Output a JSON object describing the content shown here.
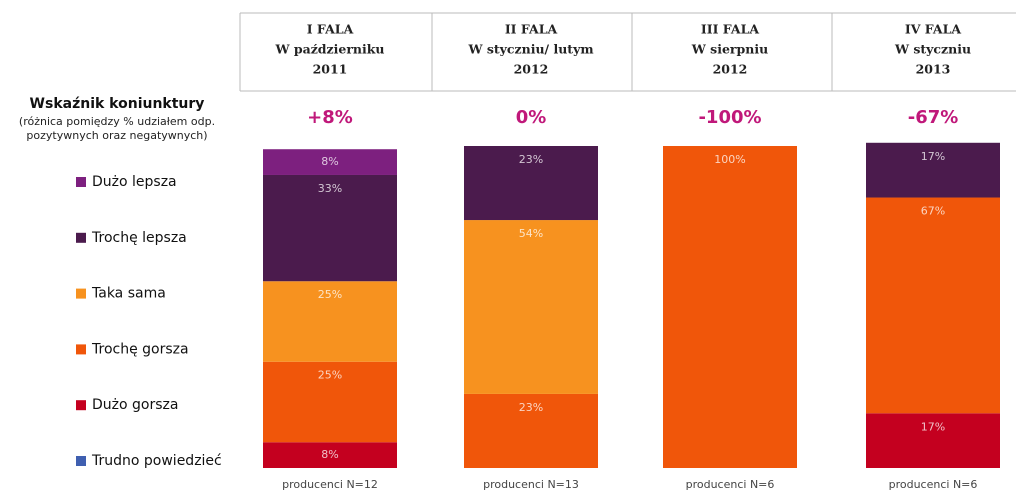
{
  "chart_data": {
    "type": "stacked_bar",
    "title": "Wskaźnik koniunktury",
    "subtitle": [
      "(różnica pomiędzy % udziałem odp.",
      "pozytywnych oraz negatywnych)"
    ],
    "headers": [
      [
        "I FALA",
        "W październiku",
        "2011"
      ],
      [
        "II FALA",
        "W styczniu/ lutym",
        "2012"
      ],
      [
        "III FALA",
        "W sierpniu",
        "2012"
      ],
      [
        "IV FALA",
        "W styczniu",
        "2013"
      ]
    ],
    "indicator_values": [
      "+8%",
      "0%",
      "-100%",
      "-67%"
    ],
    "categories": [
      "producenci N=12",
      "producenci N=13",
      "producenci N=6",
      "producenci N=6"
    ],
    "ylim": [
      0,
      100
    ],
    "series": [
      {
        "name": "Trudno powiedzieć",
        "color": "#3f5fb0",
        "values": [
          0,
          0,
          0,
          0
        ],
        "value_labels": [
          null,
          null,
          null,
          null
        ]
      },
      {
        "name": "Dużo gorsza",
        "color": "#c4001f",
        "values": [
          8,
          0,
          0,
          17
        ],
        "value_labels": [
          "8%",
          null,
          null,
          "17%"
        ]
      },
      {
        "name": "Trochę gorsza",
        "color": "#f0560a",
        "values": [
          25,
          23,
          100,
          67
        ],
        "value_labels": [
          "25%",
          "23%",
          "100%",
          "67%"
        ]
      },
      {
        "name": "Taka sama",
        "color": "#f7921f",
        "values": [
          25,
          54,
          0,
          0
        ],
        "value_labels": [
          "25%",
          "54%",
          null,
          null
        ]
      },
      {
        "name": "Trochę lepsza",
        "color": "#4b1b4d",
        "values": [
          33,
          23,
          0,
          17
        ],
        "value_labels": [
          "33%",
          "23%",
          null,
          "17%"
        ]
      },
      {
        "name": "Dużo lepsza",
        "color": "#7d207f",
        "values": [
          8,
          0,
          0,
          0
        ],
        "value_labels": [
          "8%",
          null,
          null,
          null
        ]
      }
    ]
  }
}
